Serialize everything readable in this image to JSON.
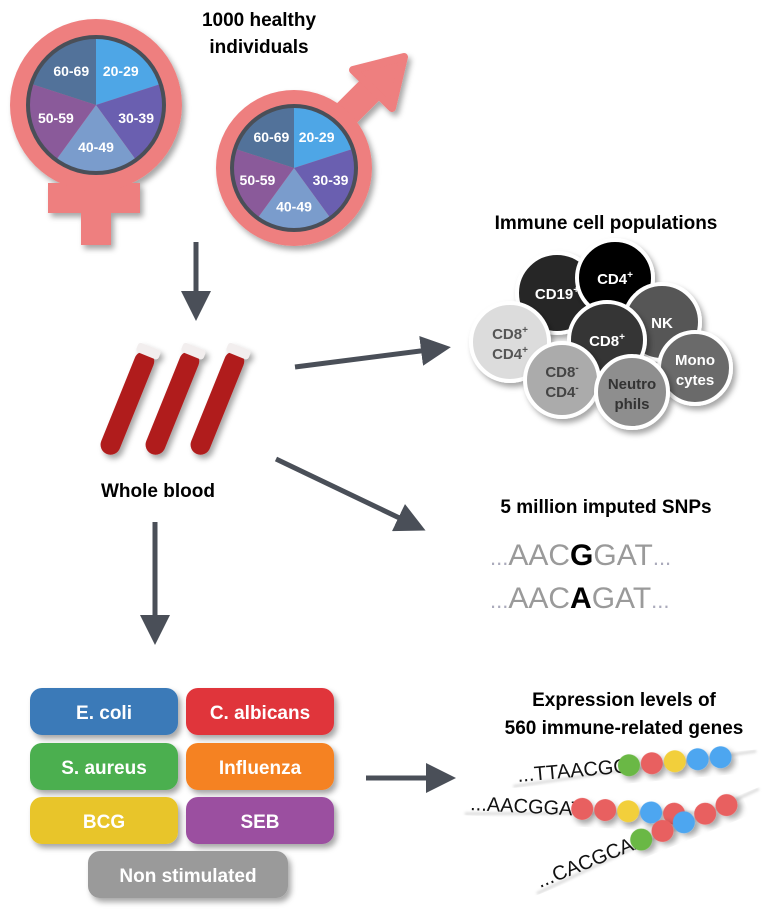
{
  "cohort": {
    "title_line1": "1000 healthy",
    "title_line2": "individuals",
    "age_groups": [
      "20-29",
      "30-39",
      "40-49",
      "50-59",
      "60-69"
    ],
    "age_colors": [
      "#4ea6e6",
      "#6a5fb0",
      "#7a9ccc",
      "#8a5a9a",
      "#52729a"
    ],
    "symbol_color": "#ee7f7f"
  },
  "sample": {
    "label": "Whole blood"
  },
  "cells": {
    "title": "Immune cell populations",
    "items": [
      {
        "line1": "CD19",
        "sup1": "+",
        "fill": "#262626",
        "text": "#ffffff"
      },
      {
        "line1": "CD4",
        "sup1": "+",
        "fill": "#000000",
        "text": "#ffffff"
      },
      {
        "line1": "NK",
        "fill": "#575757",
        "text": "#ffffff"
      },
      {
        "line1": "CD8",
        "sup1": "+",
        "fill": "#353535",
        "text": "#ffffff"
      },
      {
        "line1": "CD8",
        "sup1": "+",
        "line2": "CD4",
        "sup2": "+",
        "fill": "#dcdcdc",
        "text": "#555555"
      },
      {
        "line1": "CD8",
        "sup1": "-",
        "line2": "CD4",
        "sup2": "-",
        "fill": "#ababab",
        "text": "#444444"
      },
      {
        "line1": "Mono",
        "line2": "cytes",
        "fill": "#6a6a6a",
        "text": "#ffffff"
      },
      {
        "line1": "Neutro",
        "line2": "phils",
        "fill": "#8e8e8e",
        "text": "#333333"
      }
    ]
  },
  "snps": {
    "title": "5 million imputed SNPs",
    "dots": "...",
    "seq1": {
      "pre": "AAC",
      "variant": "G",
      "post": "GAT"
    },
    "seq2": {
      "pre": "AAC",
      "variant": "A",
      "post": "GAT"
    }
  },
  "expression": {
    "title_line1": "Expression levels of",
    "title_line2": "560 immune-related genes",
    "rows": [
      {
        "seq": "...TTAACGG",
        "beads": [
          "#6ab845",
          "#e86060",
          "#f2cf3a",
          "#4ea6f0",
          "#4ea6f0"
        ]
      },
      {
        "seq": "...AACGGAT",
        "beads": [
          "#e86060",
          "#e86060",
          "#f2cf3a",
          "#4ea6f0",
          "#e86060"
        ]
      },
      {
        "seq": "...CACGCAA",
        "beads": [
          "#6ab845",
          "#e86060",
          "#4ea6f0",
          "#e86060",
          "#e86060"
        ]
      }
    ]
  },
  "stimuli": [
    {
      "label": "E. coli",
      "color": "#3a7ab8"
    },
    {
      "label": "C. albicans",
      "color": "#e0343a"
    },
    {
      "label": "S. aureus",
      "color": "#4caf50"
    },
    {
      "label": "Influenza",
      "color": "#f58220"
    },
    {
      "label": "BCG",
      "color": "#e8c52c"
    },
    {
      "label": "SEB",
      "color": "#9b4fa0"
    },
    {
      "label": "Non stimulated",
      "color": "#9a9a9a"
    }
  ],
  "arrow_color": "#4a4f58"
}
